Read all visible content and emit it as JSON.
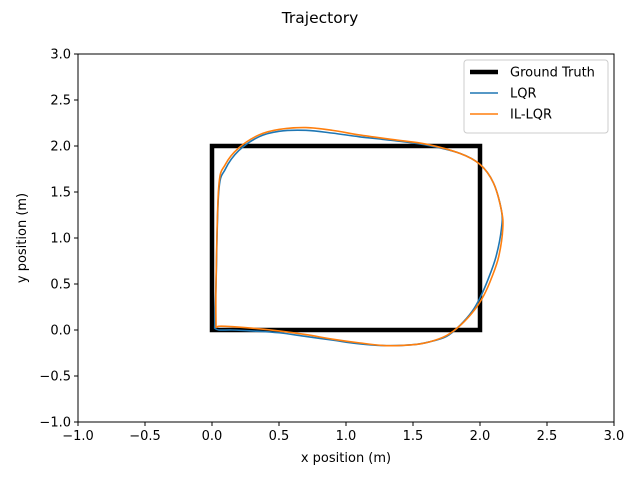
{
  "chart_data": {
    "type": "line",
    "title": "Trajectory",
    "xlabel": "x position (m)",
    "ylabel": "y position (m)",
    "xlim": [
      -1.0,
      3.0
    ],
    "ylim": [
      -1.0,
      3.0
    ],
    "xticks": [
      -1.0,
      -0.5,
      0.0,
      0.5,
      1.0,
      1.5,
      2.0,
      2.5,
      3.0
    ],
    "yticks": [
      -1.0,
      -0.5,
      0.0,
      0.5,
      1.0,
      1.5,
      2.0,
      2.5,
      3.0
    ],
    "xtick_labels": [
      "−1.0",
      "−0.5",
      "0.0",
      "0.5",
      "1.0",
      "1.5",
      "2.0",
      "2.5",
      "3.0"
    ],
    "ytick_labels": [
      "−1.0",
      "−0.5",
      "0.0",
      "0.5",
      "1.0",
      "1.5",
      "2.0",
      "2.5",
      "3.0"
    ],
    "grid": false,
    "legend_position": "top-right",
    "series": [
      {
        "name": "Ground Truth",
        "color": "#000000",
        "style": "thick",
        "x": [
          0.0,
          2.0,
          2.0,
          0.0,
          0.0
        ],
        "y": [
          0.0,
          0.0,
          2.0,
          2.0,
          0.0
        ]
      },
      {
        "name": "LQR",
        "color": "#1f77b4",
        "style": "thin",
        "x": [
          0.02,
          0.03,
          0.05,
          0.1,
          0.2,
          0.35,
          0.5,
          0.7,
          0.9,
          1.1,
          1.35,
          1.6,
          1.85,
          2.0,
          2.1,
          2.16,
          2.16,
          2.12,
          2.06,
          2.0,
          1.94,
          1.85,
          1.75,
          1.62,
          1.5,
          1.3,
          1.1,
          0.9,
          0.7,
          0.5,
          0.3,
          0.15,
          0.05,
          0.02
        ],
        "y": [
          0.02,
          0.5,
          1.5,
          1.75,
          1.95,
          2.1,
          2.16,
          2.17,
          2.14,
          2.1,
          2.06,
          2.01,
          1.92,
          1.8,
          1.6,
          1.3,
          1.1,
          0.8,
          0.55,
          0.35,
          0.2,
          0.05,
          -0.07,
          -0.13,
          -0.16,
          -0.17,
          -0.15,
          -0.11,
          -0.07,
          -0.03,
          -0.01,
          0.0,
          0.0,
          0.02
        ]
      },
      {
        "name": "IL-LQR",
        "color": "#ff7f0e",
        "style": "thin",
        "x": [
          0.03,
          0.03,
          0.05,
          0.1,
          0.2,
          0.35,
          0.5,
          0.7,
          0.9,
          1.1,
          1.35,
          1.6,
          1.85,
          2.0,
          2.1,
          2.16,
          2.17,
          2.14,
          2.09,
          2.03,
          1.96,
          1.86,
          1.75,
          1.62,
          1.5,
          1.3,
          1.1,
          0.9,
          0.7,
          0.5,
          0.3,
          0.1,
          0.05,
          0.03
        ],
        "y": [
          0.03,
          0.5,
          1.55,
          1.8,
          1.98,
          2.12,
          2.18,
          2.2,
          2.17,
          2.12,
          2.07,
          2.02,
          1.92,
          1.8,
          1.6,
          1.3,
          1.1,
          0.8,
          0.58,
          0.38,
          0.22,
          0.06,
          -0.06,
          -0.13,
          -0.16,
          -0.17,
          -0.14,
          -0.1,
          -0.05,
          -0.01,
          0.02,
          0.04,
          0.04,
          0.03
        ]
      }
    ]
  }
}
